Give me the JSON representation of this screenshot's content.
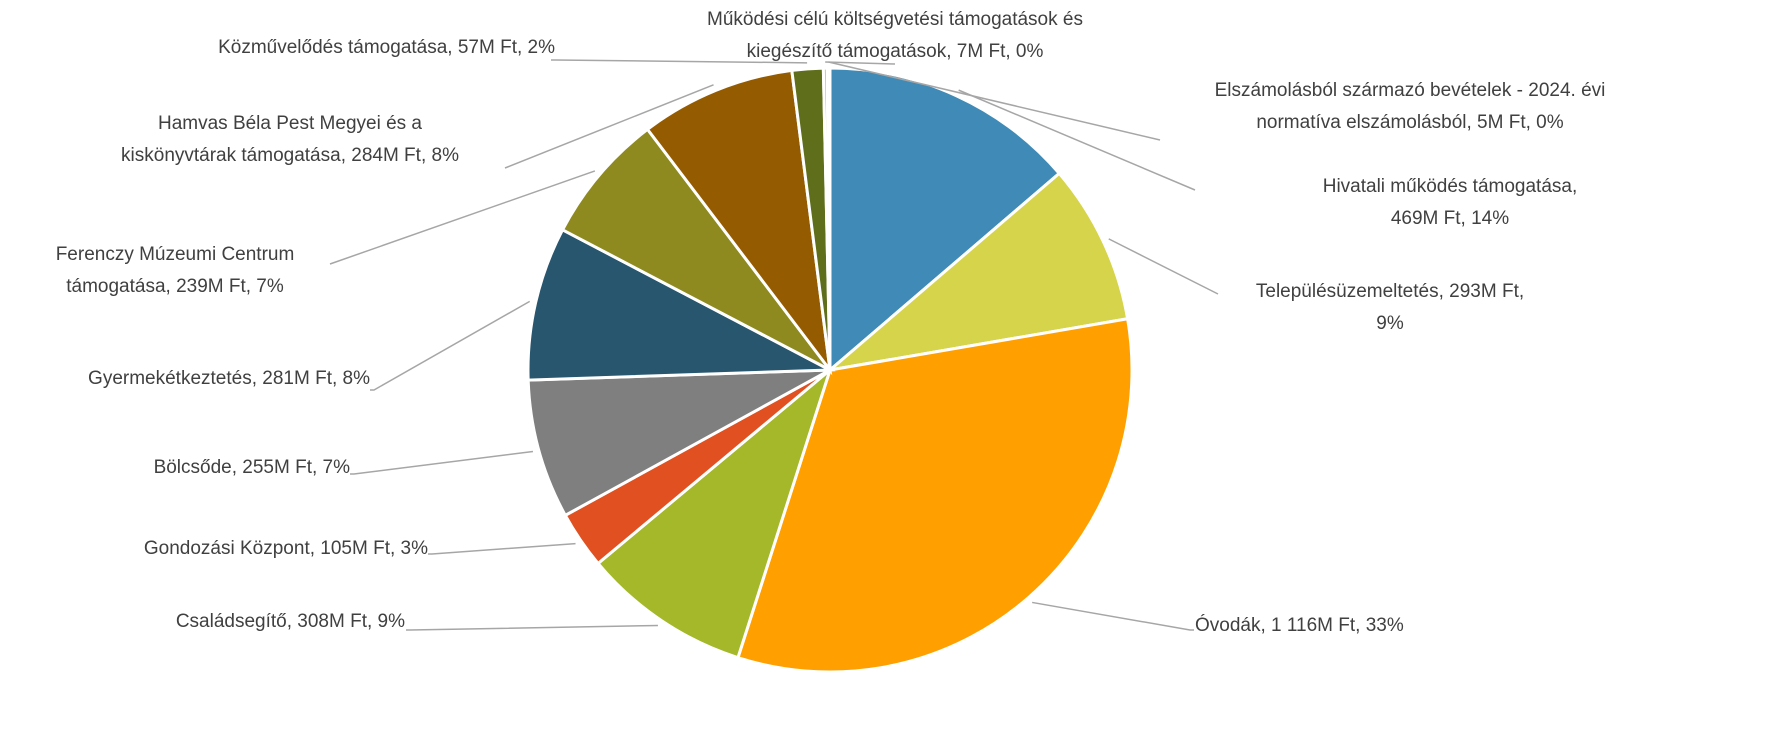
{
  "chart_data": {
    "type": "pie",
    "values": [
      469,
      293,
      1116,
      308,
      105,
      255,
      281,
      239,
      284,
      57,
      7,
      5
    ],
    "value_labels": [
      [
        "Hivatali működés támogatása,",
        "469M Ft, 14%"
      ],
      [
        "Településüzemeltetés,  293M Ft,",
        "9%"
      ],
      [
        "Óvodák, 1 116M Ft, 33%"
      ],
      [
        "Családsegítő,  308M Ft, 9%"
      ],
      [
        "Gondozási Központ,  105M Ft, 3%"
      ],
      [
        "Bölcsőde,  255M Ft, 7%"
      ],
      [
        "Gyermekétkeztetés,  281M Ft, 8%"
      ],
      [
        "Ferenczy Múzeumi Centrum",
        "támogatása,  239M Ft, 7%"
      ],
      [
        "Hamvas Béla Pest Megyei és a",
        "kiskönyvtárak támogatása,  284M Ft, 8%"
      ],
      [
        "Közművelődés támogatása,  57M Ft, 2%"
      ],
      [
        "Működési célú költségvetési támogatások és",
        "kiegészítő támogatások,  7M Ft, 0%"
      ],
      [
        "Elszámolásból származó bevételek - 2024. évi",
        "normatíva elszámolásból,  5M Ft, 0%"
      ]
    ],
    "colors": [
      "#3f8ab6",
      "#d6d44a",
      "#ffa000",
      "#a4b82a",
      "#e05020",
      "#7f7f7f",
      "#27566e",
      "#8f8a1f",
      "#955b00",
      "#5e6e1a",
      "#b7b46a",
      "#c9c98a"
    ]
  }
}
